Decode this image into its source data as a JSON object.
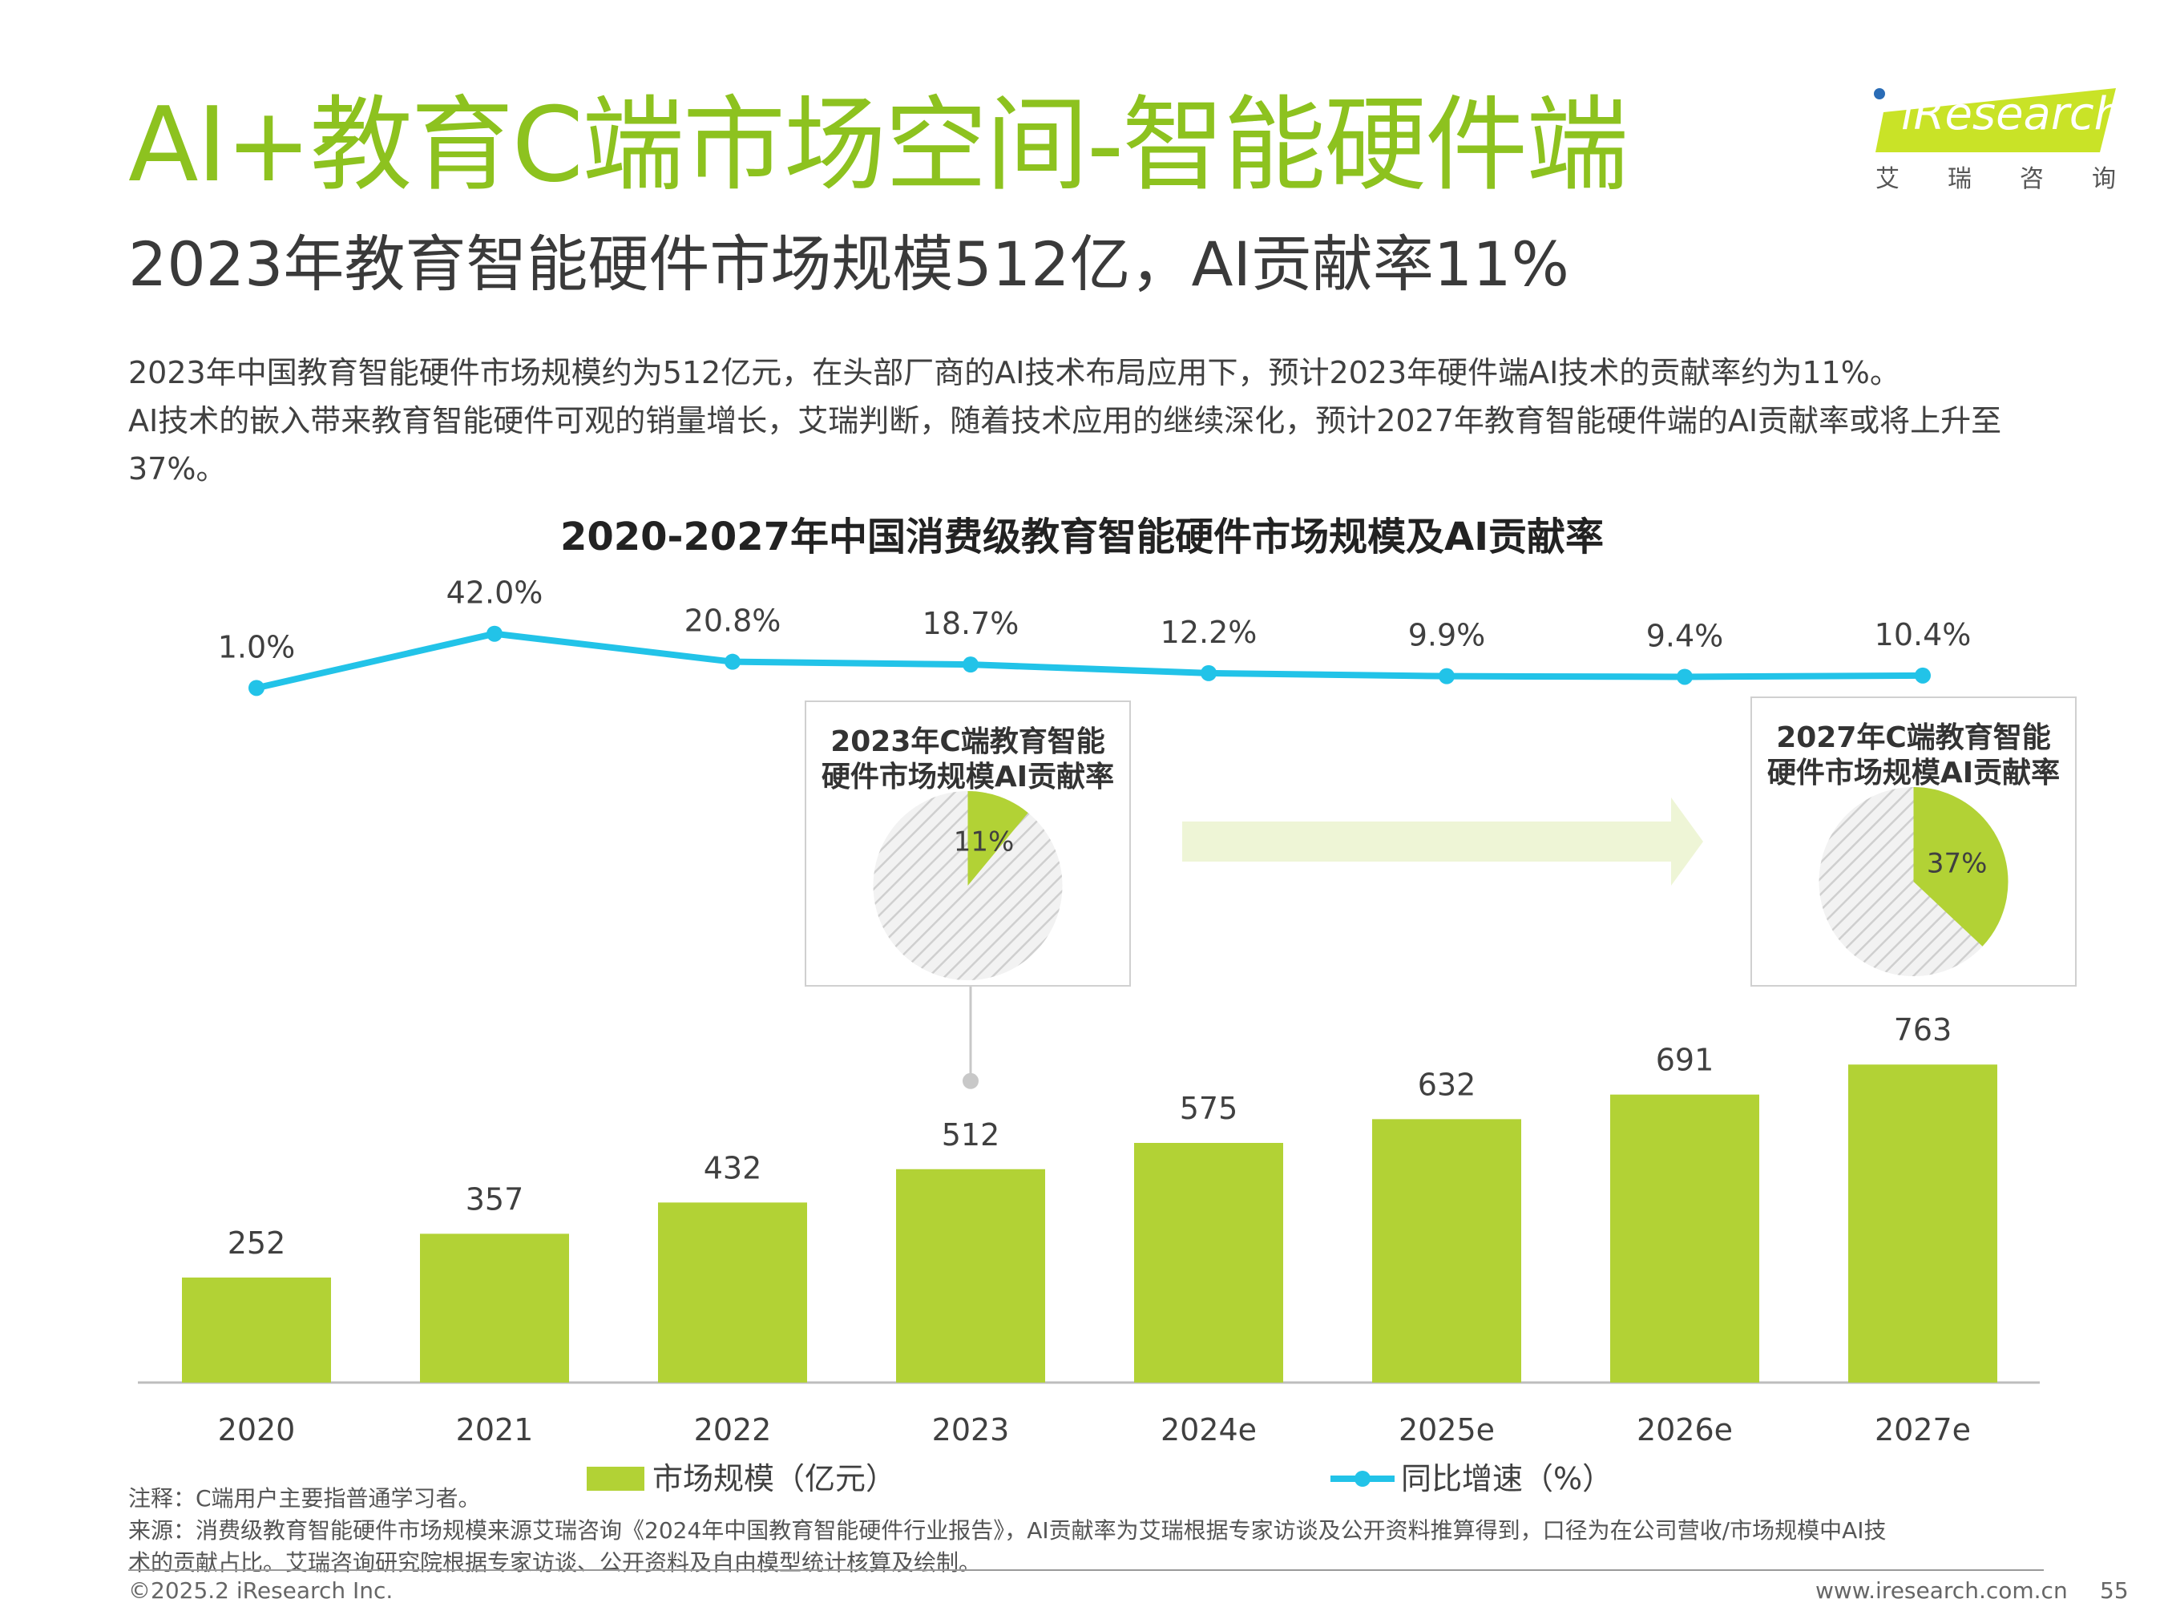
{
  "header": {
    "title": "AI+教育C端市场空间-智能硬件端",
    "subtitle": "2023年教育智能硬件市场规模512亿，AI贡献率11%"
  },
  "logo": {
    "brand": "iResearch",
    "chinese": "艾瑞咨询",
    "color": "#c9e327"
  },
  "intro": {
    "line1": "2023年中国教育智能硬件市场规模约为512亿元，在头部厂商的AI技术布局应用下，预计2023年硬件端AI技术的贡献率约为11%。",
    "line2": "AI技术的嵌入带来教育智能硬件可观的销量增长，艾瑞判断，随着技术应用的继续深化，预计2027年教育智能硬件端的AI贡献率或将上升至37%。"
  },
  "chart_data": {
    "type": "bar",
    "title": "2020-2027年中国消费级教育智能硬件市场规模及AI贡献率",
    "categories": [
      "2020",
      "2021",
      "2022",
      "2023",
      "2024e",
      "2025e",
      "2026e",
      "2027e"
    ],
    "series": [
      {
        "name": "市场规模（亿元）",
        "type": "bar",
        "color": "#b2d235",
        "values": [
          252,
          357,
          432,
          512,
          575,
          632,
          691,
          763
        ]
      },
      {
        "name": "同比增速（%）",
        "type": "line",
        "color": "#22c3e8",
        "values": [
          1.0,
          42.0,
          20.8,
          18.7,
          12.2,
          9.9,
          9.4,
          10.4
        ],
        "labels": [
          "1.0%",
          "42.0%",
          "20.8%",
          "18.7%",
          "12.2%",
          "9.9%",
          "9.4%",
          "10.4%"
        ]
      }
    ],
    "legend_position": "bottom",
    "grid": false,
    "pies": [
      {
        "title_line1": "2023年C端教育智能",
        "title_line2": "硬件市场规模AI贡献率",
        "value": 11,
        "label": "11%",
        "category": "2023"
      },
      {
        "title_line1": "2027年C端教育智能",
        "title_line2": "硬件市场规模AI贡献率",
        "value": 37,
        "label": "37%",
        "category": "2027e"
      }
    ]
  },
  "footer": {
    "note": "注释：C端用户主要指普通学习者。",
    "source_line1": "来源：消费级教育智能硬件市场规模来源艾瑞咨询《2024年中国教育智能硬件行业报告》，AI贡献率为艾瑞根据专家访谈及公开资料推算得到，口径为在公司营收/市场规模中AI技",
    "source_line2": "术的贡献占比。艾瑞咨询研究院根据专家访谈、公开资料及自由模型统计核算及绘制。",
    "copyright": "©2025.2 iResearch Inc.",
    "website": "www.iresearch.com.cn",
    "page": "55"
  }
}
